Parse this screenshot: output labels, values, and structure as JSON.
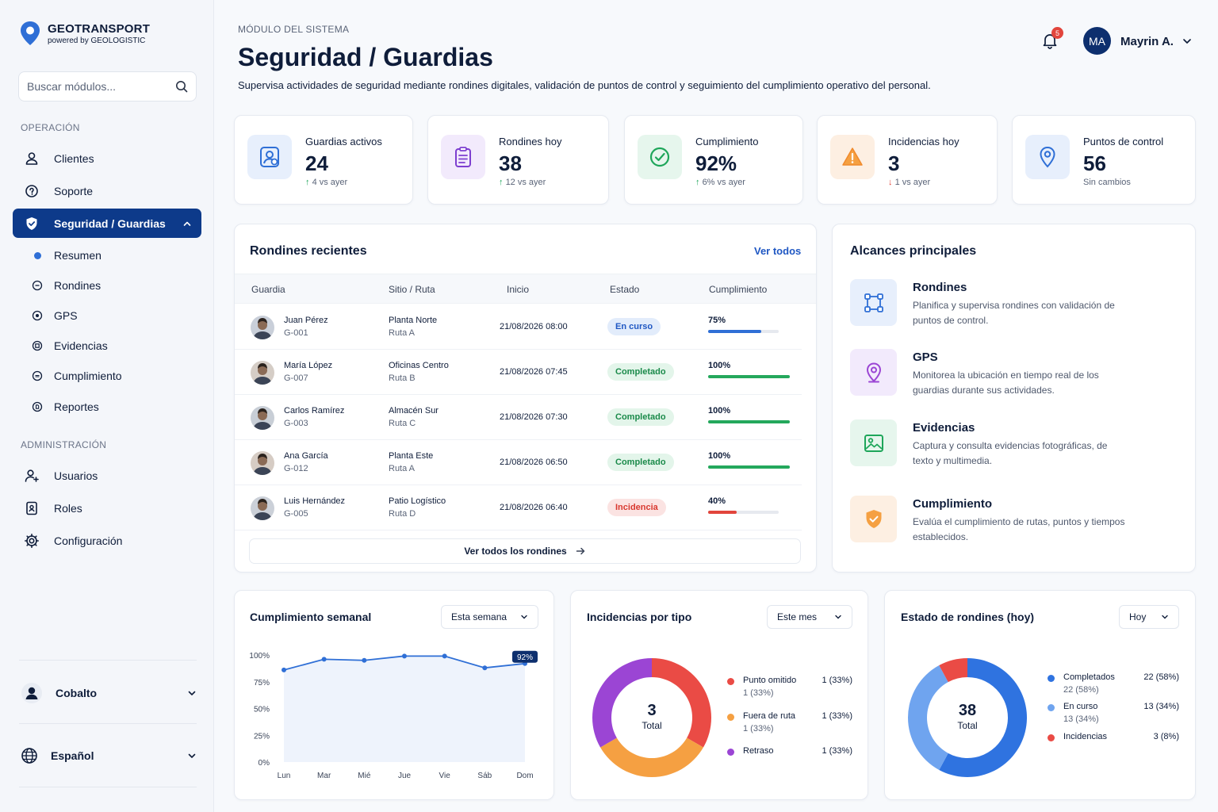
{
  "brand": {
    "name": "GEOTRANSPORT",
    "tagline": "powered by GEOLOGISTIC"
  },
  "search": {
    "placeholder": "Buscar módulos..."
  },
  "sidebar": {
    "section_operacion": "OPERACIÓN",
    "items": [
      {
        "label": "Clientes"
      },
      {
        "label": "Soporte"
      },
      {
        "label": "Seguridad / Guardias"
      }
    ],
    "subitems": [
      {
        "label": "Resumen"
      },
      {
        "label": "Rondines"
      },
      {
        "label": "GPS"
      },
      {
        "label": "Evidencias"
      },
      {
        "label": "Cumplimiento"
      },
      {
        "label": "Reportes"
      }
    ],
    "section_admin": "ADMINISTRACIÓN",
    "admin_items": [
      {
        "label": "Usuarios"
      },
      {
        "label": "Roles"
      },
      {
        "label": "Configuración"
      }
    ],
    "company": "Cobalto",
    "language": "Español"
  },
  "header": {
    "kicker": "MÓDULO DEL SISTEMA",
    "title": "Seguridad / Guardias",
    "description": "Supervisa actividades de seguridad mediante rondines digitales, validación de puntos de control y seguimiento del cumplimiento operativo del personal.",
    "notifications": "5",
    "user_initials": "MA",
    "user_name": "Mayrin A."
  },
  "kpis": [
    {
      "label": "Guardias activos",
      "value": "24",
      "delta": "4 vs ayer",
      "trend": "up",
      "icon": "guard-badge-icon",
      "color": "#2f6fd6"
    },
    {
      "label": "Rondines hoy",
      "value": "38",
      "delta": "12 vs ayer",
      "trend": "up",
      "icon": "clipboard-icon",
      "color": "#7d3fd0"
    },
    {
      "label": "Cumplimiento",
      "value": "92%",
      "delta": "6% vs ayer",
      "trend": "up",
      "icon": "check-circle-icon",
      "color": "#1ea65a"
    },
    {
      "label": "Incidencias hoy",
      "value": "3",
      "delta": "1 vs ayer",
      "trend": "down",
      "icon": "warning-icon",
      "color": "#f08a2c"
    },
    {
      "label": "Puntos de control",
      "value": "56",
      "delta": "Sin cambios",
      "trend": "none",
      "icon": "location-pin-icon",
      "color": "#2f6fd6"
    }
  ],
  "recent": {
    "title": "Rondines recientes",
    "view_all": "Ver todos",
    "columns": [
      "Guardia",
      "Sitio / Ruta",
      "Inicio",
      "Estado",
      "Cumplimiento"
    ],
    "rows": [
      {
        "name": "Juan Pérez",
        "code": "G-001",
        "site": "Planta Norte",
        "route": "Ruta A",
        "start": "21/08/2026 08:00",
        "status": "En curso",
        "status_type": "progress",
        "pct": "75%",
        "value": 75
      },
      {
        "name": "María López",
        "code": "G-007",
        "site": "Oficinas Centro",
        "route": "Ruta B",
        "start": "21/08/2026 07:45",
        "status": "Completado",
        "status_type": "done",
        "pct": "100%",
        "value": 100
      },
      {
        "name": "Carlos Ramírez",
        "code": "G-003",
        "site": "Almacén Sur",
        "route": "Ruta C",
        "start": "21/08/2026 07:30",
        "status": "Completado",
        "status_type": "done",
        "pct": "100%",
        "value": 100
      },
      {
        "name": "Ana García",
        "code": "G-012",
        "site": "Planta Este",
        "route": "Ruta A",
        "start": "21/08/2026 06:50",
        "status": "Completado",
        "status_type": "done",
        "pct": "100%",
        "value": 100
      },
      {
        "name": "Luis Hernández",
        "code": "G-005",
        "site": "Patio Logístico",
        "route": "Ruta D",
        "start": "21/08/2026 06:40",
        "status": "Incidencia",
        "status_type": "incident",
        "pct": "40%",
        "value": 40
      }
    ],
    "view_all_button": "Ver todos los rondines"
  },
  "scopes": {
    "title": "Alcances principales",
    "items": [
      {
        "title": "Rondines",
        "desc": "Planifica y supervisa rondines con validación de puntos de control."
      },
      {
        "title": "GPS",
        "desc": "Monitorea la ubicación en tiempo real de los guardias durante sus actividades."
      },
      {
        "title": "Evidencias",
        "desc": "Captura y consulta evidencias fotográficas, de texto y multimedia."
      },
      {
        "title": "Cumplimiento",
        "desc": "Evalúa el cumplimiento de rutas, puntos y tiempos establecidos."
      }
    ]
  },
  "weekly": {
    "title": "Cumplimiento semanal",
    "period": "Esta semana"
  },
  "incidents": {
    "title": "Incidencias por tipo",
    "period": "Este mes",
    "total": "3",
    "total_label": "Total"
  },
  "status": {
    "title": "Estado de rondines (hoy)",
    "period": "Hoy",
    "total": "38",
    "total_label": "Total"
  },
  "chart_data": [
    {
      "type": "line",
      "title": "Cumplimiento semanal",
      "categories": [
        "Lun",
        "Mar",
        "Mié",
        "Jue",
        "Vie",
        "Sáb",
        "Dom"
      ],
      "series": [
        {
          "values": [
            86,
            96,
            95,
            99,
            99,
            88,
            92
          ]
        }
      ],
      "ylim": [
        0,
        100
      ],
      "yticks": [
        "0%",
        "25%",
        "50%",
        "75%",
        "100%"
      ],
      "highlight": "92%",
      "grid": false
    },
    {
      "type": "pie",
      "title": "Incidencias por tipo",
      "categories": [
        "Punto omitido",
        "Fuera de ruta",
        "Retraso"
      ],
      "values": [
        1,
        1,
        1
      ],
      "labels": [
        "1 (33%)",
        "1 (33%)",
        "1 (33%)"
      ],
      "colors": [
        "#ea4b45",
        "#f5a042",
        "#9b45d4"
      ],
      "donut": true,
      "legend": "right"
    },
    {
      "type": "pie",
      "title": "Estado de rondines (hoy)",
      "categories": [
        "Completados",
        "En curso",
        "Incidencias"
      ],
      "values": [
        22,
        13,
        3
      ],
      "labels": [
        "22 (58%)",
        "13 (34%)",
        "3 (8%)"
      ],
      "colors": [
        "#2f73e0",
        "#6fa4ef",
        "#ea4b45"
      ],
      "donut": true,
      "legend": "right"
    }
  ]
}
